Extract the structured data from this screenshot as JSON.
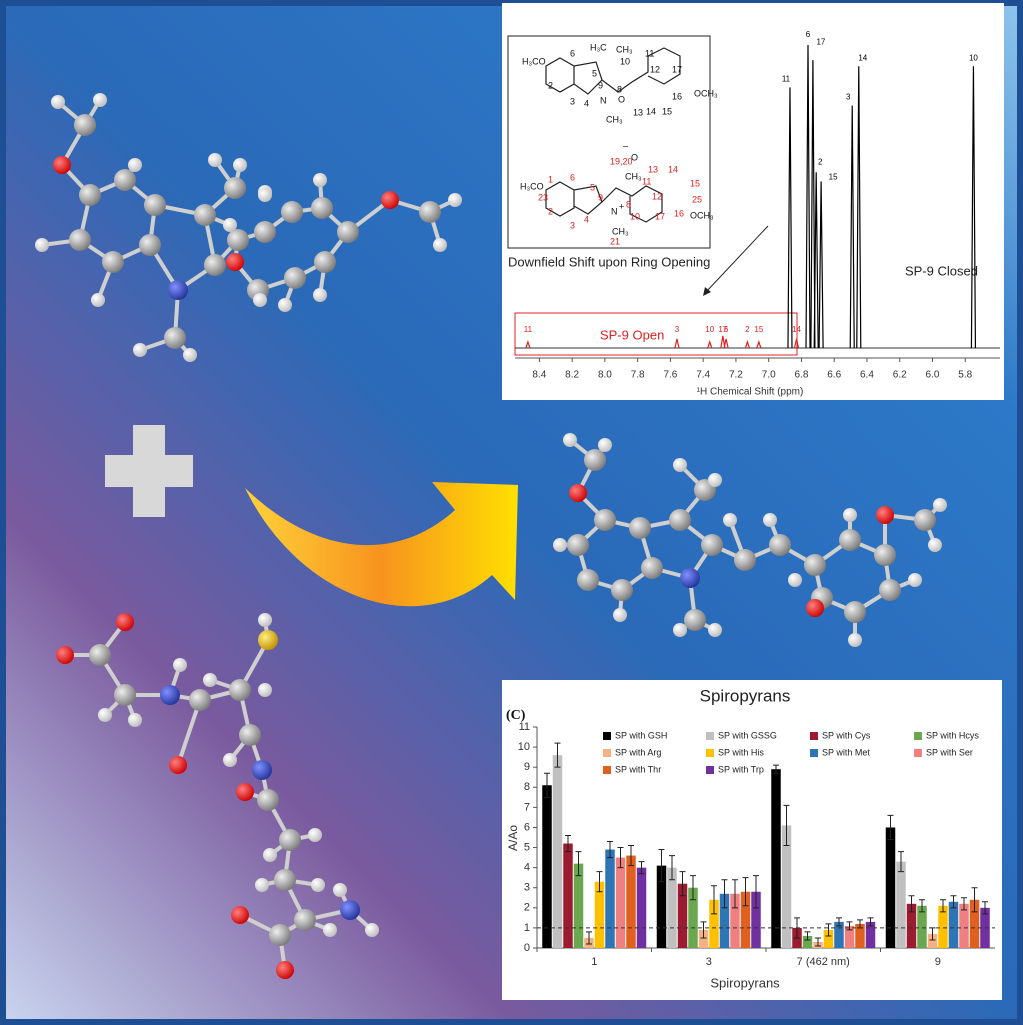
{
  "chart_data": [
    {
      "type": "spectrum",
      "x_label": "¹H Chemical Shift (ppm)",
      "annotation": "Downfield Shift upon Ring Opening",
      "xlim": [
        8.5,
        5.6
      ],
      "xticks": [
        8.4,
        8.2,
        {
          "value": 8,
          "label": "8.0"
        },
        7.8,
        7.6,
        7.4,
        7.2,
        {
          "value": 7,
          "label": "7.0"
        },
        6.8,
        6.6,
        6.4,
        6.2,
        {
          "value": 6,
          "label": "6.0"
        },
        5.8
      ],
      "ylim": [
        0,
        100
      ],
      "series": [
        {
          "name": "SP-9 Closed",
          "color": "#000000",
          "peaks": [
            {
              "label": "11",
              "ppm": 6.87,
              "intensity": 86
            },
            {
              "label": "6",
              "ppm": 6.76,
              "intensity": 100
            },
            {
              "label": "17",
              "ppm": 6.73,
              "intensity": 95
            },
            {
              "label": "2",
              "ppm": 6.71,
              "intensity": 58
            },
            {
              "label": "15",
              "ppm": 6.68,
              "intensity": 55
            },
            {
              "label": "3",
              "ppm": 6.49,
              "intensity": 80
            },
            {
              "label": "14",
              "ppm": 6.45,
              "intensity": 93
            },
            {
              "label": "10",
              "ppm": 5.75,
              "intensity": 93
            }
          ]
        },
        {
          "name": "SP-9 Open",
          "color": "#e02020",
          "peaks": [
            {
              "label": "11",
              "ppm": 8.47,
              "intensity": 2
            },
            {
              "label": "3",
              "ppm": 7.56,
              "intensity": 3
            },
            {
              "label": "10",
              "ppm": 7.36,
              "intensity": 2
            },
            {
              "label": "17",
              "ppm": 7.28,
              "intensity": 4
            },
            {
              "label": "6",
              "ppm": 7.26,
              "intensity": 3
            },
            {
              "label": "2",
              "ppm": 7.13,
              "intensity": 2
            },
            {
              "label": "15",
              "ppm": 7.06,
              "intensity": 2
            },
            {
              "label": "14",
              "ppm": 6.83,
              "intensity": 3
            }
          ]
        }
      ]
    },
    {
      "type": "bar",
      "title": "Spiropyrans",
      "panel_label": "(C)",
      "x_label": "Spiropyrans",
      "y_label": "A/Ao",
      "categories": [
        "1",
        "3",
        "7 (462 nm)",
        "9"
      ],
      "ylim": [
        0,
        11
      ],
      "yticks": [
        0,
        1,
        2,
        3,
        4,
        5,
        6,
        7,
        8,
        9,
        10,
        11
      ],
      "reference_line": 1,
      "series": [
        {
          "name": "SP with GSH",
          "color": "#000000",
          "values": [
            8.1,
            4.1,
            8.9,
            6.0
          ],
          "errors": [
            0.6,
            0.8,
            0.2,
            0.6
          ]
        },
        {
          "name": "SP with GSSG",
          "color": "#c0c0c0",
          "values": [
            9.6,
            4.0,
            6.1,
            4.3
          ],
          "errors": [
            0.6,
            0.6,
            1.0,
            0.5
          ]
        },
        {
          "name": "SP with Cys",
          "color": "#9b1b30",
          "values": [
            5.2,
            3.2,
            1.0,
            2.2
          ],
          "errors": [
            0.4,
            0.6,
            0.5,
            0.4
          ]
        },
        {
          "name": "SP with Hcys",
          "color": "#6aa84f",
          "values": [
            4.2,
            3.0,
            0.6,
            2.1
          ],
          "errors": [
            0.6,
            0.6,
            0.2,
            0.3
          ]
        },
        {
          "name": "SP with Arg",
          "color": "#f4b183",
          "values": [
            0.5,
            0.9,
            0.3,
            0.7
          ],
          "errors": [
            0.3,
            0.4,
            0.2,
            0.3
          ]
        },
        {
          "name": "SP with His",
          "color": "#ffc000",
          "values": [
            3.3,
            2.4,
            0.9,
            2.1
          ],
          "errors": [
            0.5,
            0.7,
            0.3,
            0.3
          ]
        },
        {
          "name": "SP with Met",
          "color": "#2e75b6",
          "values": [
            4.9,
            2.7,
            1.3,
            2.3
          ],
          "errors": [
            0.4,
            0.7,
            0.2,
            0.3
          ]
        },
        {
          "name": "SP with Ser",
          "color": "#f08080",
          "values": [
            4.5,
            2.7,
            1.1,
            2.2
          ],
          "errors": [
            0.5,
            0.7,
            0.2,
            0.3
          ]
        },
        {
          "name": "SP with Thr",
          "color": "#e06020",
          "values": [
            4.6,
            2.8,
            1.2,
            2.4
          ],
          "errors": [
            0.5,
            0.7,
            0.2,
            0.6
          ]
        },
        {
          "name": "SP with Trp",
          "color": "#7030a0",
          "values": [
            4.0,
            2.8,
            1.3,
            2.0
          ],
          "errors": [
            0.3,
            0.8,
            0.2,
            0.3
          ]
        }
      ]
    }
  ],
  "structures": {
    "closed": [
      "H₃CO",
      "6",
      "5",
      "H₃C",
      "CH₃",
      "11",
      "10",
      "9",
      "8",
      "12",
      "17",
      "2",
      "N",
      "4",
      "O",
      "13",
      "16",
      "OCH₃",
      "3",
      "CH₃",
      "14",
      "15"
    ],
    "open": [
      "H₃CO",
      "1",
      "23",
      "6",
      "5",
      "19,20",
      "CH₃",
      "11",
      "–",
      "O",
      "13",
      "14",
      "12",
      "15",
      "9",
      "8",
      "N",
      "+",
      "4",
      "10",
      "17",
      "16",
      "25",
      "OCH₃",
      "2",
      "3",
      "CH₃",
      "21"
    ]
  }
}
